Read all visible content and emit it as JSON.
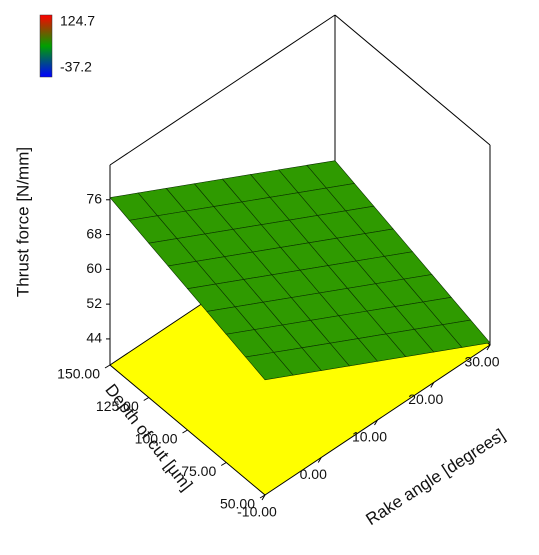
{
  "chart_data": {
    "type": "surface",
    "x_label": "Rake angle [degrees]",
    "y_label": "Depth of cut [µm]",
    "z_label": "Thrust force [N/mm]",
    "x": [
      -10,
      -5,
      0,
      5,
      10,
      15,
      20,
      25,
      30
    ],
    "y": [
      50,
      62.5,
      75,
      87.5,
      100,
      112.5,
      125,
      137.5,
      150
    ],
    "z": [
      [
        64.5,
        61.25,
        58,
        54.75,
        51.5,
        48.25,
        45,
        41.75,
        38.5
      ],
      [
        66,
        62.75,
        59.5,
        56.25,
        53,
        49.75,
        46.5,
        43.25,
        40
      ],
      [
        67.5,
        64.25,
        61,
        57.75,
        54.5,
        51.25,
        48,
        44.75,
        41.5
      ],
      [
        69,
        65.75,
        62.5,
        59.25,
        56,
        52.75,
        49.5,
        46.25,
        43
      ],
      [
        70.5,
        67.25,
        64,
        60.75,
        57.5,
        54.25,
        51,
        47.75,
        44.5
      ],
      [
        72,
        68.75,
        65.5,
        62.25,
        59,
        55.75,
        52.5,
        49.25,
        46
      ],
      [
        73.5,
        70.25,
        67,
        63.75,
        60.5,
        57.25,
        54,
        50.75,
        47.5
      ],
      [
        75,
        71.75,
        68.5,
        65.25,
        62,
        58.75,
        55.5,
        52.25,
        49
      ],
      [
        76.5,
        73.25,
        70,
        66.75,
        63.5,
        60.25,
        57,
        53.75,
        50.5
      ]
    ],
    "xlim": [
      -10,
      30
    ],
    "ylim": [
      50,
      150
    ],
    "zlim": [
      38,
      84
    ],
    "xticks": [
      {
        "value": -10,
        "label": "-10.00"
      },
      {
        "value": 0,
        "label": "0.00"
      },
      {
        "value": 10,
        "label": "10.00"
      },
      {
        "value": 20,
        "label": "20.00"
      },
      {
        "value": 30,
        "label": "30.00"
      }
    ],
    "yticks": [
      {
        "value": 50,
        "label": "50.00"
      },
      {
        "value": 75,
        "label": "75.00"
      },
      {
        "value": 100,
        "label": "100.00"
      },
      {
        "value": 125,
        "label": "125.00"
      },
      {
        "value": 150,
        "label": "150.00"
      }
    ],
    "zticks": [
      44,
      52,
      60,
      68,
      76
    ],
    "color": "#2f9a00",
    "mesh_color": "#0b3300",
    "floor_color": "#ffff00",
    "colorbar": {
      "max": 124.7,
      "min": -37.2,
      "max_color": "#ff0000",
      "mid_color": "#00a000",
      "min_color": "#0000ff"
    }
  }
}
